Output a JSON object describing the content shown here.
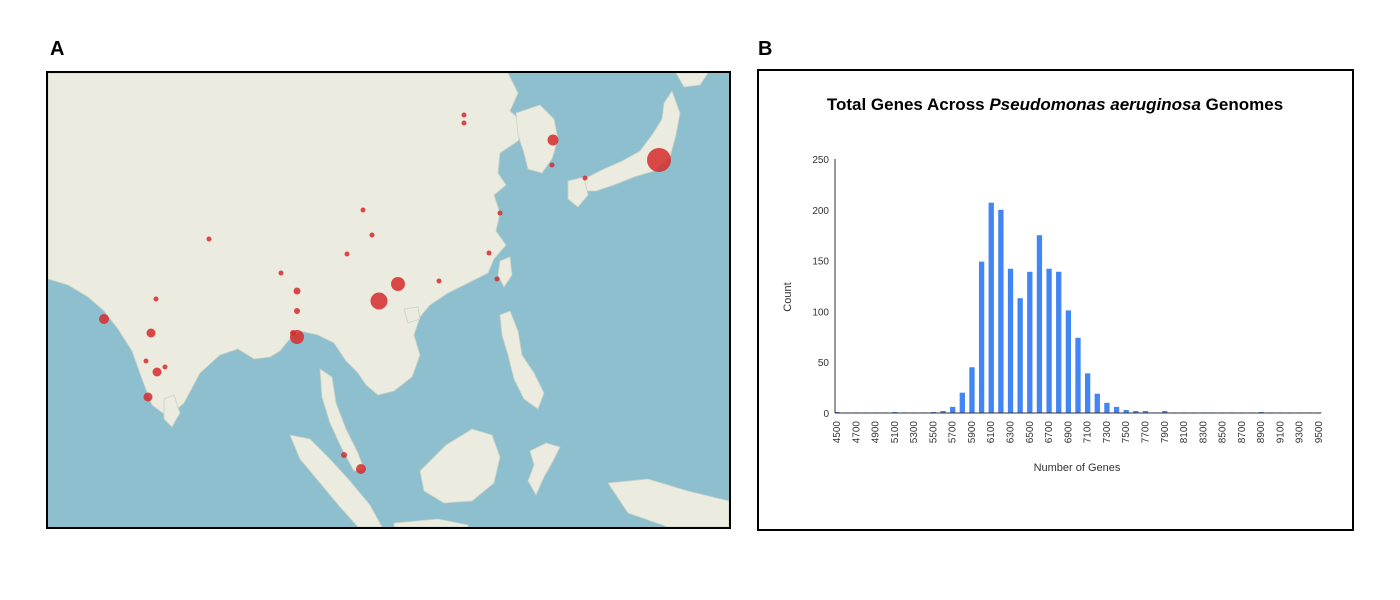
{
  "panels": {
    "a_label": "A",
    "b_label": "B"
  },
  "map": {
    "colors": {
      "sea": "#8ebfcf",
      "land": "#ebebdf",
      "marker": "#d62b2b"
    }
  },
  "chart_data": {
    "type": "bar",
    "title_prefix": "Total Genes Across ",
    "title_italic": "Pseudomonas aeruginosa",
    "title_suffix": " Genomes",
    "xlabel": "Number of Genes",
    "ylabel": "Count",
    "ylim": [
      0,
      250
    ],
    "yticks": [
      0,
      50,
      100,
      150,
      200,
      250
    ],
    "xtick_labels": [
      "4500",
      "4700",
      "4900",
      "5100",
      "5300",
      "5500",
      "5700",
      "5900",
      "6100",
      "6300",
      "6500",
      "6700",
      "6900",
      "7100",
      "7300",
      "7500",
      "7700",
      "7900",
      "8100",
      "8300",
      "8500",
      "8700",
      "8900",
      "9100",
      "9300",
      "9500"
    ],
    "bin_width": 100,
    "bins": [
      4500,
      4600,
      4700,
      4800,
      4900,
      5000,
      5100,
      5200,
      5300,
      5400,
      5500,
      5600,
      5700,
      5800,
      5900,
      6000,
      6100,
      6200,
      6300,
      6400,
      6500,
      6600,
      6700,
      6800,
      6900,
      7000,
      7100,
      7200,
      7300,
      7400,
      7500,
      7600,
      7700,
      7800,
      7900,
      8000,
      8100,
      8200,
      8300,
      8400,
      8500,
      8600,
      8700,
      8800,
      8900,
      9000,
      9100,
      9200,
      9300,
      9400,
      9500
    ],
    "values": [
      1,
      0,
      0,
      0,
      0,
      0,
      1,
      0,
      0,
      0,
      1,
      2,
      6,
      20,
      45,
      149,
      207,
      200,
      142,
      113,
      139,
      175,
      142,
      139,
      101,
      74,
      39,
      19,
      10,
      6,
      3,
      2,
      2,
      0,
      2,
      0,
      0,
      0,
      0,
      0,
      0,
      0,
      0,
      0,
      1,
      0,
      0,
      0,
      0,
      0,
      0
    ],
    "bar_color": "#4285f4",
    "grid": false,
    "legend": "none"
  }
}
